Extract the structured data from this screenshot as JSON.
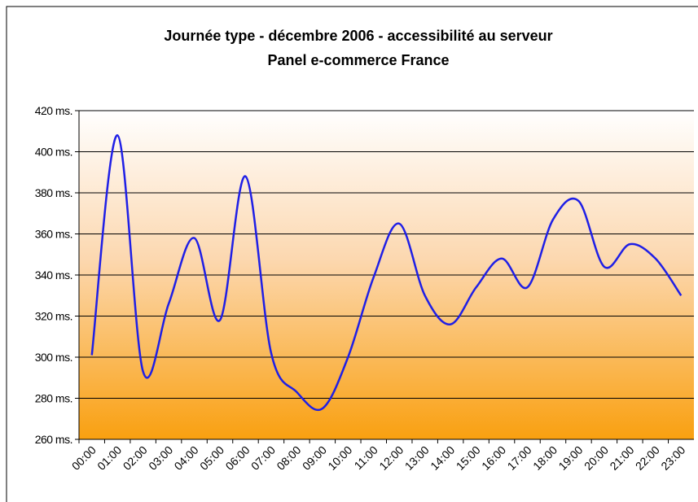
{
  "chart_data": {
    "type": "line",
    "title": "Journée type - décembre 2006 - accessibilité au serveur",
    "subtitle": "Panel e-commerce France",
    "categories": [
      "00:00",
      "01:00",
      "02:00",
      "03:00",
      "04:00",
      "05:00",
      "06:00",
      "07:00",
      "08:00",
      "09:00",
      "10:00",
      "11:00",
      "12:00",
      "13:00",
      "14:00",
      "15:00",
      "16:00",
      "17:00",
      "18:00",
      "19:00",
      "20:00",
      "21:00",
      "22:00",
      "23:00"
    ],
    "series": [
      {
        "name": "accessibilité au serveur",
        "color": "#1f1fe6",
        "values": [
          301,
          408,
          293,
          326,
          358,
          318,
          388,
          302,
          283,
          275,
          300,
          339,
          365,
          330,
          316,
          334,
          348,
          334,
          367,
          376,
          344,
          355,
          348,
          330
        ]
      }
    ],
    "ylim": [
      260,
      420
    ],
    "yticks": [
      {
        "value": 260,
        "label": "260 ms."
      },
      {
        "value": 280,
        "label": "280 ms."
      },
      {
        "value": 300,
        "label": "300 ms."
      },
      {
        "value": 320,
        "label": "320 ms."
      },
      {
        "value": 340,
        "label": "340 ms."
      },
      {
        "value": 360,
        "label": "360 ms."
      },
      {
        "value": 380,
        "label": "380 ms."
      },
      {
        "value": 400,
        "label": "400 ms."
      },
      {
        "value": 420,
        "label": "420 ms."
      }
    ],
    "grid": true
  }
}
